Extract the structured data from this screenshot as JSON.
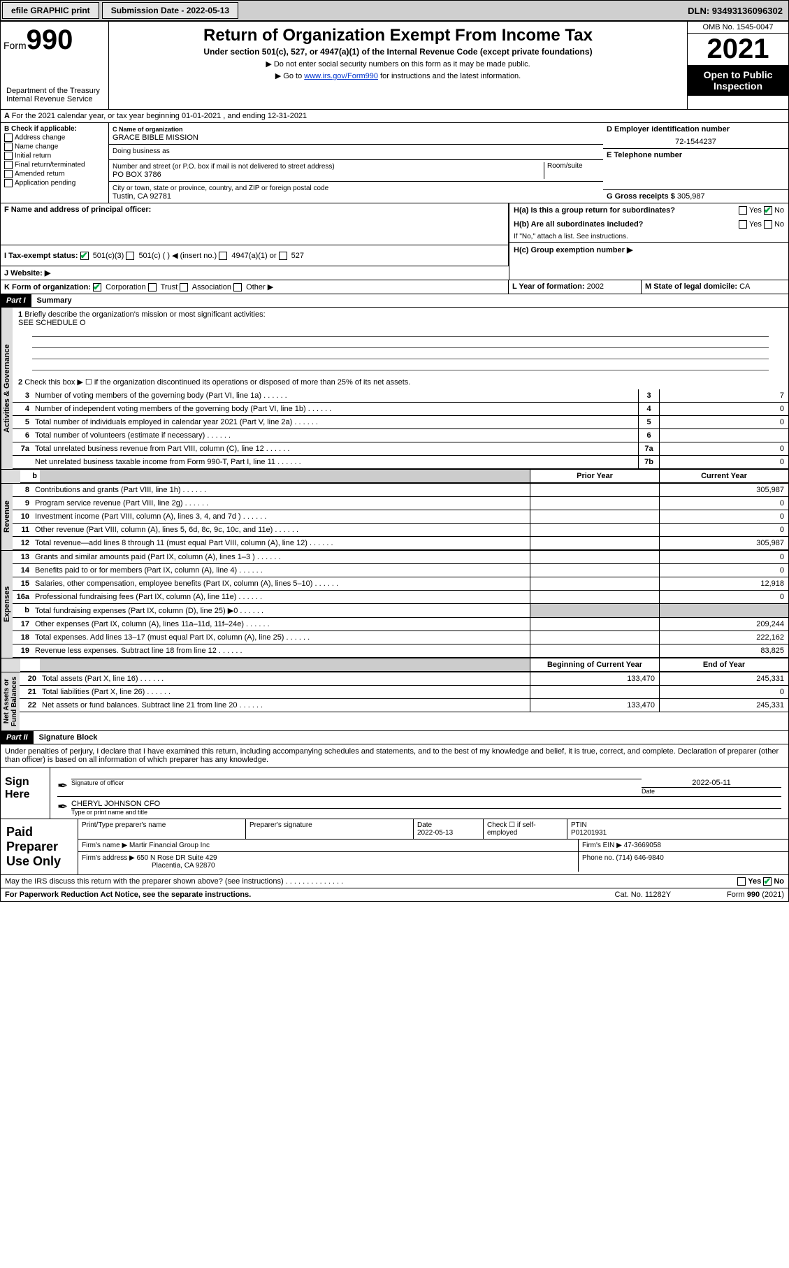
{
  "topbar": {
    "efile": "efile GRAPHIC print",
    "submission": "Submission Date - 2022-05-13",
    "dln": "DLN: 93493136096302"
  },
  "header": {
    "form_word": "Form",
    "form_num": "990",
    "title": "Return of Organization Exempt From Income Tax",
    "sub": "Under section 501(c), 527, or 4947(a)(1) of the Internal Revenue Code (except private foundations)",
    "note1": "Do not enter social security numbers on this form as it may be made public.",
    "note2_pre": "Go to ",
    "note2_link": "www.irs.gov/Form990",
    "note2_post": " for instructions and the latest information.",
    "dept": "Department of the Treasury\nInternal Revenue Service",
    "omb": "OMB No. 1545-0047",
    "year": "2021",
    "open": "Open to Public Inspection"
  },
  "lineA": "For the 2021 calendar year, or tax year beginning 01-01-2021   , and ending 12-31-2021",
  "sectionB": {
    "label": "B Check if applicable:",
    "opts": [
      "Address change",
      "Name change",
      "Initial return",
      "Final return/terminated",
      "Amended return",
      "Application pending"
    ]
  },
  "sectionC": {
    "name_label": "C Name of organization",
    "name": "GRACE BIBLE MISSION",
    "dba_label": "Doing business as",
    "addr_label": "Number and street (or P.O. box if mail is not delivered to street address)",
    "room_label": "Room/suite",
    "addr": "PO BOX 3786",
    "city_label": "City or town, state or province, country, and ZIP or foreign postal code",
    "city": "Tustin, CA  92781"
  },
  "sectionD": {
    "label": "D Employer identification number",
    "val": "72-1544237"
  },
  "sectionE": {
    "label": "E Telephone number",
    "val": ""
  },
  "sectionG": {
    "label": "G Gross receipts $",
    "val": "305,987"
  },
  "sectionF": "F  Name and address of principal officer:",
  "sectionH": {
    "ha": "H(a)  Is this a group return for subordinates?",
    "hb": "H(b)  Are all subordinates included?",
    "hb_note": "If \"No,\" attach a list. See instructions.",
    "hc": "H(c)  Group exemption number ▶",
    "yes": "Yes",
    "no": "No"
  },
  "sectionI": {
    "label": "I   Tax-exempt status:",
    "opts": [
      "501(c)(3)",
      "501(c) (  ) ◀ (insert no.)",
      "4947(a)(1) or",
      "527"
    ]
  },
  "sectionJ": "J   Website: ▶",
  "sectionK": {
    "label": "K Form of organization:",
    "opts": [
      "Corporation",
      "Trust",
      "Association",
      "Other ▶"
    ]
  },
  "sectionL": {
    "label": "L Year of formation:",
    "val": "2002"
  },
  "sectionM": {
    "label": "M State of legal domicile:",
    "val": "CA"
  },
  "parts": {
    "p1": "Part I",
    "p1t": "Summary",
    "p2": "Part II",
    "p2t": "Signature Block"
  },
  "summary": {
    "q1": "Briefly describe the organization's mission or most significant activities:",
    "q1a": "SEE SCHEDULE O",
    "q2": "Check this box ▶ ☐  if the organization discontinued its operations or disposed of more than 25% of its net assets.",
    "lines": [
      {
        "n": "3",
        "t": "Number of voting members of the governing body (Part VI, line 1a)",
        "box": "3",
        "v": "7"
      },
      {
        "n": "4",
        "t": "Number of independent voting members of the governing body (Part VI, line 1b)",
        "box": "4",
        "v": "0"
      },
      {
        "n": "5",
        "t": "Total number of individuals employed in calendar year 2021 (Part V, line 2a)",
        "box": "5",
        "v": "0"
      },
      {
        "n": "6",
        "t": "Total number of volunteers (estimate if necessary)",
        "box": "6",
        "v": ""
      },
      {
        "n": "7a",
        "t": "Total unrelated business revenue from Part VIII, column (C), line 12",
        "box": "7a",
        "v": "0"
      },
      {
        "n": "",
        "t": "Net unrelated business taxable income from Form 990-T, Part I, line 11",
        "box": "7b",
        "v": "0"
      }
    ],
    "col_b": "b",
    "col_prior": "Prior Year",
    "col_current": "Current Year",
    "revenue": [
      {
        "n": "8",
        "t": "Contributions and grants (Part VIII, line 1h)",
        "p": "",
        "c": "305,987"
      },
      {
        "n": "9",
        "t": "Program service revenue (Part VIII, line 2g)",
        "p": "",
        "c": "0"
      },
      {
        "n": "10",
        "t": "Investment income (Part VIII, column (A), lines 3, 4, and 7d )",
        "p": "",
        "c": "0"
      },
      {
        "n": "11",
        "t": "Other revenue (Part VIII, column (A), lines 5, 6d, 8c, 9c, 10c, and 11e)",
        "p": "",
        "c": "0"
      },
      {
        "n": "12",
        "t": "Total revenue—add lines 8 through 11 (must equal Part VIII, column (A), line 12)",
        "p": "",
        "c": "305,987"
      }
    ],
    "expenses": [
      {
        "n": "13",
        "t": "Grants and similar amounts paid (Part IX, column (A), lines 1–3 )",
        "p": "",
        "c": "0"
      },
      {
        "n": "14",
        "t": "Benefits paid to or for members (Part IX, column (A), line 4)",
        "p": "",
        "c": "0"
      },
      {
        "n": "15",
        "t": "Salaries, other compensation, employee benefits (Part IX, column (A), lines 5–10)",
        "p": "",
        "c": "12,918"
      },
      {
        "n": "16a",
        "t": "Professional fundraising fees (Part IX, column (A), line 11e)",
        "p": "",
        "c": "0"
      },
      {
        "n": "b",
        "t": "Total fundraising expenses (Part IX, column (D), line 25) ▶0",
        "p": "shaded",
        "c": "shaded"
      },
      {
        "n": "17",
        "t": "Other expenses (Part IX, column (A), lines 11a–11d, 11f–24e)",
        "p": "",
        "c": "209,244"
      },
      {
        "n": "18",
        "t": "Total expenses. Add lines 13–17 (must equal Part IX, column (A), line 25)",
        "p": "",
        "c": "222,162"
      },
      {
        "n": "19",
        "t": "Revenue less expenses. Subtract line 18 from line 12",
        "p": "",
        "c": "83,825"
      }
    ],
    "col_begin": "Beginning of Current Year",
    "col_end": "End of Year",
    "netassets": [
      {
        "n": "20",
        "t": "Total assets (Part X, line 16)",
        "p": "133,470",
        "c": "245,331"
      },
      {
        "n": "21",
        "t": "Total liabilities (Part X, line 26)",
        "p": "",
        "c": "0"
      },
      {
        "n": "22",
        "t": "Net assets or fund balances. Subtract line 21 from line 20",
        "p": "133,470",
        "c": "245,331"
      }
    ]
  },
  "vlabels": {
    "gov": "Activities & Governance",
    "rev": "Revenue",
    "exp": "Expenses",
    "net": "Net Assets or\nFund Balances"
  },
  "sig": {
    "penalty": "Under penalties of perjury, I declare that I have examined this return, including accompanying schedules and statements, and to the best of my knowledge and belief, it is true, correct, and complete. Declaration of preparer (other than officer) is based on all information of which preparer has any knowledge.",
    "sign_here": "Sign Here",
    "sig_officer": "Signature of officer",
    "date": "Date",
    "date_val": "2022-05-11",
    "name": "CHERYL JOHNSON  CFO",
    "name_label": "Type or print name and title"
  },
  "preparer": {
    "label": "Paid Preparer Use Only",
    "h1": "Print/Type preparer's name",
    "h2": "Preparer's signature",
    "h3": "Date",
    "h3v": "2022-05-13",
    "h4": "Check ☐ if self-employed",
    "h5": "PTIN",
    "h5v": "P01201931",
    "firm_label": "Firm's name    ▶",
    "firm": "Martir Financial Group Inc",
    "ein_label": "Firm's EIN ▶",
    "ein": "47-3669058",
    "addr_label": "Firm's address ▶",
    "addr1": "650 N Rose DR Suite 429",
    "addr2": "Placentia, CA  92870",
    "phone_label": "Phone no.",
    "phone": "(714) 646-9840"
  },
  "footer": {
    "q": "May the IRS discuss this return with the preparer shown above? (see instructions)",
    "yes": "Yes",
    "no": "No",
    "paperwork": "For Paperwork Reduction Act Notice, see the separate instructions.",
    "cat": "Cat. No. 11282Y",
    "form": "Form 990 (2021)"
  }
}
